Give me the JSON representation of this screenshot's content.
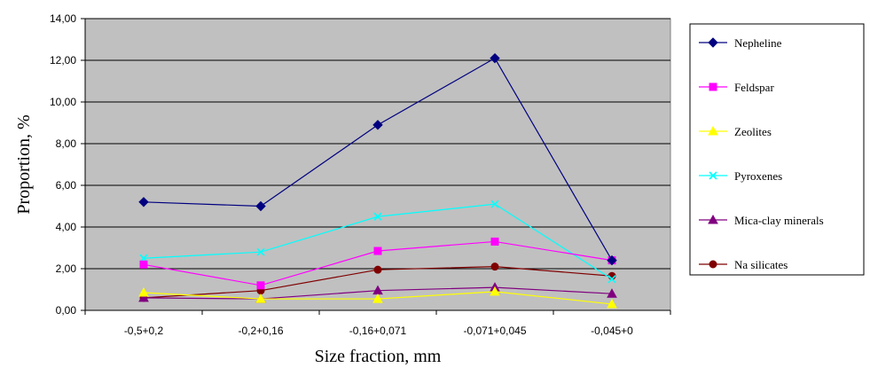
{
  "chart_data": {
    "type": "line",
    "categories": [
      "-0,5+0,2",
      "-0,2+0,16",
      "-0,16+0,071",
      "-0,071+0,045",
      "-0,045+0"
    ],
    "xlabel": "Size fraction, mm",
    "ylabel": "Proportion, %",
    "ylim": [
      0,
      14
    ],
    "yticks": [
      "0,00",
      "2,00",
      "4,00",
      "6,00",
      "8,00",
      "10,00",
      "12,00",
      "14,00"
    ],
    "grid": true,
    "legend_position": "right",
    "plot_background": "#c0c0c0",
    "series": [
      {
        "name": "Nepheline",
        "color": "#000080",
        "marker": "diamond",
        "values": [
          5.2,
          5.0,
          8.9,
          12.1,
          2.4
        ]
      },
      {
        "name": "Feldspar",
        "color": "#ff00ff",
        "marker": "square",
        "values": [
          2.2,
          1.2,
          2.85,
          3.3,
          2.4
        ]
      },
      {
        "name": "Zeolites",
        "color": "#ffff00",
        "marker": "triangle",
        "values": [
          0.85,
          0.55,
          0.55,
          0.9,
          0.3
        ]
      },
      {
        "name": "Pyroxenes",
        "color": "#00ffff",
        "marker": "x",
        "values": [
          2.5,
          2.8,
          4.5,
          5.1,
          1.5
        ]
      },
      {
        "name": "Mica-clay minerals",
        "color": "#800080",
        "marker": "triangle",
        "values": [
          0.6,
          0.55,
          0.95,
          1.1,
          0.8
        ]
      },
      {
        "name": "Na silicates",
        "color": "#800000",
        "marker": "circle",
        "values": [
          0.6,
          0.95,
          1.95,
          2.1,
          1.65
        ]
      }
    ]
  }
}
